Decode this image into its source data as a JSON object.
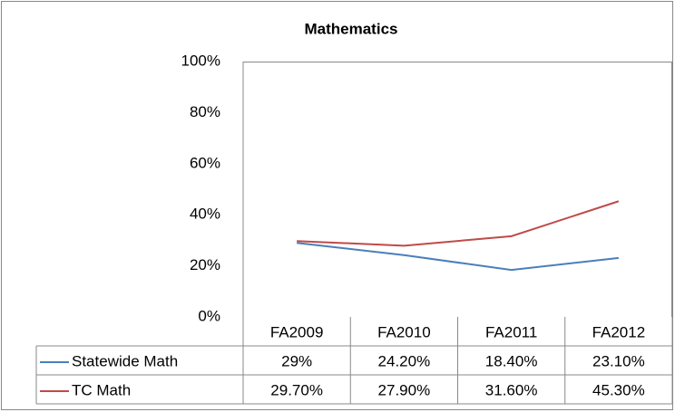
{
  "chart_data": {
    "type": "line",
    "title": "Mathematics",
    "categories": [
      "FA2009",
      "FA2010",
      "FA2011",
      "FA2012"
    ],
    "series": [
      {
        "name": "Statewide Math",
        "color": "#4a7ebb",
        "values": [
          29,
          24.2,
          18.4,
          23.1
        ],
        "value_labels": [
          "29%",
          "24.20%",
          "18.40%",
          "23.10%"
        ]
      },
      {
        "name": "TC Math",
        "color": "#be4b48",
        "values": [
          29.7,
          27.9,
          31.6,
          45.3
        ],
        "value_labels": [
          "29.70%",
          "27.90%",
          "31.60%",
          "45.30%"
        ]
      }
    ],
    "ylim": [
      0,
      100
    ],
    "yticks": [
      {
        "value": 0,
        "label": "0%"
      },
      {
        "value": 20,
        "label": "20%"
      },
      {
        "value": 40,
        "label": "40%"
      },
      {
        "value": 60,
        "label": "60%"
      },
      {
        "value": 80,
        "label": "80%"
      },
      {
        "value": 100,
        "label": "100%"
      }
    ],
    "grid": false
  }
}
